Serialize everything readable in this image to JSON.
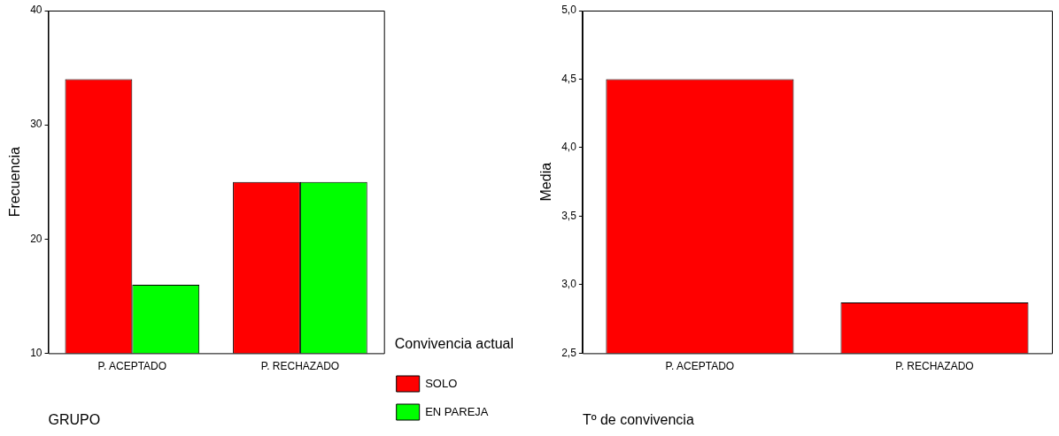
{
  "chart_data": [
    {
      "type": "bar",
      "categories": [
        "P. ACEPTADO",
        "P. RECHAZADO"
      ],
      "xlabel": "GRUPO",
      "ylabel": "Frecuencia",
      "legend_title": "Convivencia actual",
      "legend": "right",
      "series": [
        {
          "name": "SOLO",
          "color": "#ff0000",
          "values": [
            34,
            25
          ]
        },
        {
          "name": "EN PAREJA",
          "color": "#00ff00",
          "values": [
            16,
            25
          ]
        }
      ],
      "ylim": [
        10,
        40
      ],
      "yticks": [
        10,
        20,
        30,
        40
      ],
      "grid": false
    },
    {
      "type": "bar",
      "categories": [
        "P. ACEPTADO",
        "P. RECHAZADO"
      ],
      "xlabel": "Tº de convivencia",
      "ylabel": "Media",
      "series": [
        {
          "color": "#ff0000",
          "values": [
            4.5,
            2.87
          ]
        }
      ],
      "ylim": [
        2.5,
        5.0
      ],
      "yticks": [
        {
          "value": 2.5,
          "label": "2,5"
        },
        {
          "value": 3.0,
          "label": "3,0"
        },
        {
          "value": 3.5,
          "label": "3,5"
        },
        {
          "value": 4.0,
          "label": "4,0"
        },
        {
          "value": 4.5,
          "label": "4,5"
        },
        {
          "value": 5.0,
          "label": "5,0"
        }
      ],
      "grid": false
    }
  ]
}
